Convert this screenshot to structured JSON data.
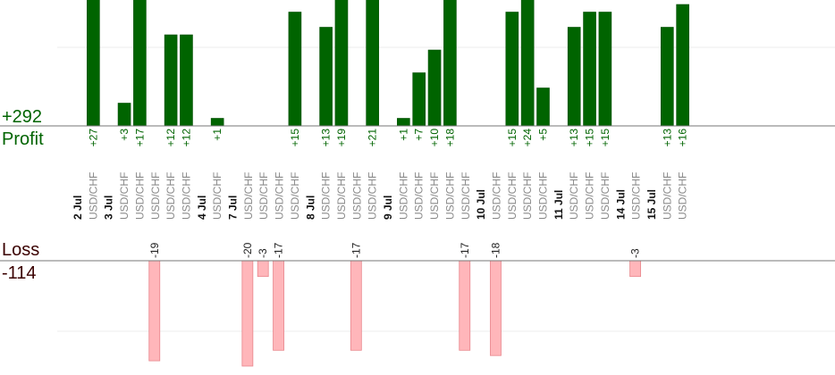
{
  "summary": {
    "profit_total": "+292",
    "profit_label": "Profit",
    "loss_label": "Loss",
    "loss_total": "-114"
  },
  "chart_data": {
    "type": "bar",
    "title": "",
    "xlabel": "",
    "ylabel": "",
    "series": [
      {
        "name": "Profit",
        "color": "#006400"
      },
      {
        "name": "Loss",
        "color": "#ffb6ba"
      }
    ],
    "bars": [
      {
        "date": "2 Jul",
        "symbol": "",
        "value": 0
      },
      {
        "date": "",
        "symbol": "USD/CHF",
        "value": 27
      },
      {
        "date": "3 Jul",
        "symbol": "",
        "value": 0
      },
      {
        "date": "",
        "symbol": "USD/CHF",
        "value": 3
      },
      {
        "date": "",
        "symbol": "USD/CHF",
        "value": 17
      },
      {
        "date": "",
        "symbol": "USD/CHF",
        "value": -19
      },
      {
        "date": "",
        "symbol": "USD/CHF",
        "value": 12
      },
      {
        "date": "",
        "symbol": "USD/CHF",
        "value": 12
      },
      {
        "date": "4 Jul",
        "symbol": "",
        "value": 0
      },
      {
        "date": "",
        "symbol": "USD/CHF",
        "value": 1
      },
      {
        "date": "7 Jul",
        "symbol": "",
        "value": 0
      },
      {
        "date": "",
        "symbol": "USD/CHF",
        "value": -20
      },
      {
        "date": "",
        "symbol": "USD/CHF",
        "value": -3
      },
      {
        "date": "",
        "symbol": "USD/CHF",
        "value": -17
      },
      {
        "date": "",
        "symbol": "USD/CHF",
        "value": 15
      },
      {
        "date": "8 Jul",
        "symbol": "",
        "value": 0
      },
      {
        "date": "",
        "symbol": "USD/CHF",
        "value": 13
      },
      {
        "date": "",
        "symbol": "USD/CHF",
        "value": 19
      },
      {
        "date": "",
        "symbol": "USD/CHF",
        "value": -17
      },
      {
        "date": "",
        "symbol": "USD/CHF",
        "value": 21
      },
      {
        "date": "9 Jul",
        "symbol": "",
        "value": 0
      },
      {
        "date": "",
        "symbol": "USD/CHF",
        "value": 1
      },
      {
        "date": "",
        "symbol": "USD/CHF",
        "value": 7
      },
      {
        "date": "",
        "symbol": "USD/CHF",
        "value": 10
      },
      {
        "date": "",
        "symbol": "USD/CHF",
        "value": 18
      },
      {
        "date": "",
        "symbol": "USD/CHF",
        "value": -17
      },
      {
        "date": "10 Jul",
        "symbol": "",
        "value": 0
      },
      {
        "date": "",
        "symbol": "USD/CHF",
        "value": -18
      },
      {
        "date": "",
        "symbol": "USD/CHF",
        "value": 15
      },
      {
        "date": "",
        "symbol": "USD/CHF",
        "value": 24
      },
      {
        "date": "",
        "symbol": "USD/CHF",
        "value": 5
      },
      {
        "date": "11 Jul",
        "symbol": "",
        "value": 0
      },
      {
        "date": "",
        "symbol": "USD/CHF",
        "value": 13
      },
      {
        "date": "",
        "symbol": "USD/CHF",
        "value": 15
      },
      {
        "date": "",
        "symbol": "USD/CHF",
        "value": 15
      },
      {
        "date": "14 Jul",
        "symbol": "",
        "value": 0
      },
      {
        "date": "",
        "symbol": "USD/CHF",
        "value": -3
      },
      {
        "date": "15 Jul",
        "symbol": "",
        "value": 0
      },
      {
        "date": "",
        "symbol": "USD/CHF",
        "value": 13
      },
      {
        "date": "",
        "symbol": "USD/CHF",
        "value": 16
      }
    ],
    "grid": true,
    "legend": "none"
  }
}
